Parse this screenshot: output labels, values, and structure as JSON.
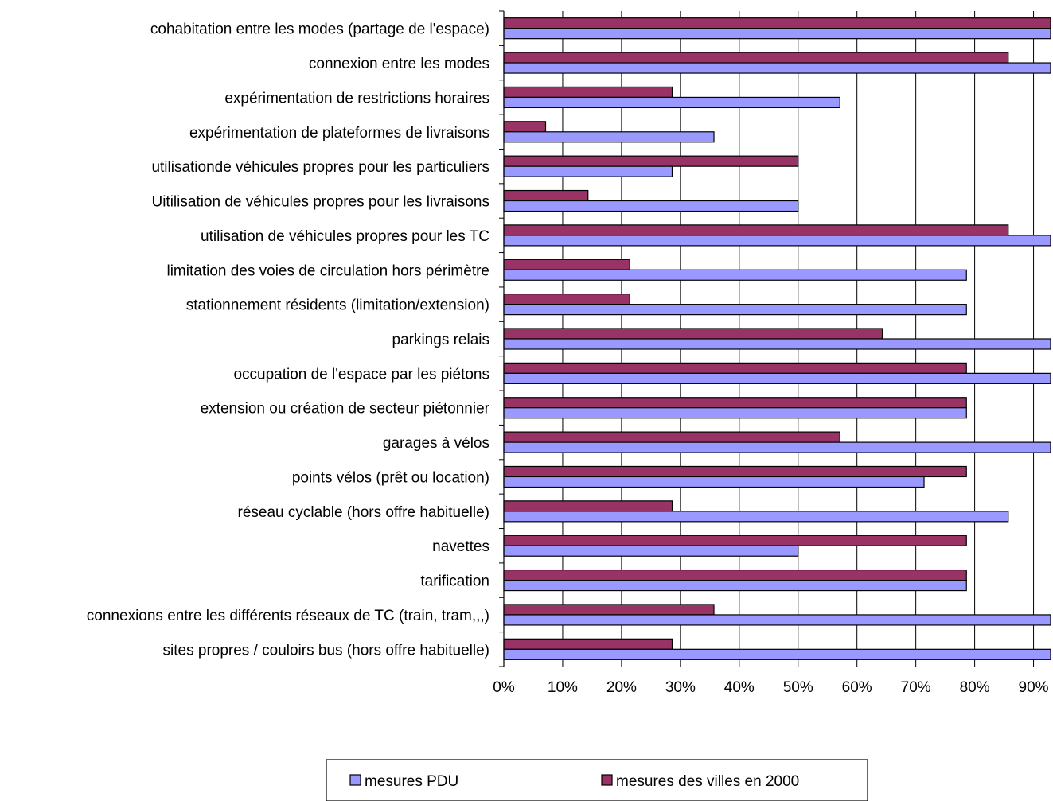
{
  "chart_data": {
    "type": "bar",
    "orientation": "horizontal",
    "categories": [
      "cohabitation entre les modes (partage de l'espace)",
      "connexion entre les modes",
      "expérimentation de restrictions horaires",
      "expérimentation de plateformes de livraisons",
      "utilisationde véhicules propres pour les particuliers",
      "Uitilisation de véhicules propres pour les livraisons",
      "utilisation de véhicules propres pour les TC",
      "limitation des voies de circulation hors périmètre",
      "stationnement résidents (limitation/extension)",
      "parkings relais",
      "occupation de l'espace par les piétons",
      "extension ou création de secteur piétonnier",
      "garages à vélos",
      "points vélos (prêt ou location)",
      "réseau cyclable (hors offre habituelle)",
      "navettes",
      "tarification",
      "connexions entre les différents réseaux de TC (train, tram,,,)",
      "sites propres / couloirs bus (hors offre habituelle)"
    ],
    "series": [
      {
        "name": "mesures des villes en 2000",
        "color": "#993366",
        "values": [
          92.9,
          85.7,
          28.6,
          7.1,
          50.0,
          14.3,
          85.7,
          21.4,
          21.4,
          64.3,
          78.6,
          78.6,
          57.1,
          78.6,
          28.6,
          78.6,
          78.6,
          35.7,
          28.6
        ]
      },
      {
        "name": "mesures PDU",
        "color": "#9999ff",
        "values": [
          92.9,
          92.9,
          57.1,
          35.7,
          28.6,
          50.0,
          92.9,
          78.6,
          78.6,
          92.9,
          92.9,
          78.6,
          92.9,
          71.4,
          85.7,
          50.0,
          78.6,
          92.9,
          92.9
        ]
      }
    ],
    "xticks": [
      "0%",
      "10%",
      "20%",
      "30%",
      "40%",
      "50%",
      "60%",
      "70%",
      "80%",
      "90%"
    ],
    "xlim": [
      0,
      92.9
    ],
    "grid": "vertical",
    "legend": {
      "placement": "bottom",
      "entries": [
        {
          "name": "mesures PDU",
          "color": "#9999ff"
        },
        {
          "name": "mesures des villes en 2000",
          "color": "#993366"
        }
      ]
    }
  }
}
